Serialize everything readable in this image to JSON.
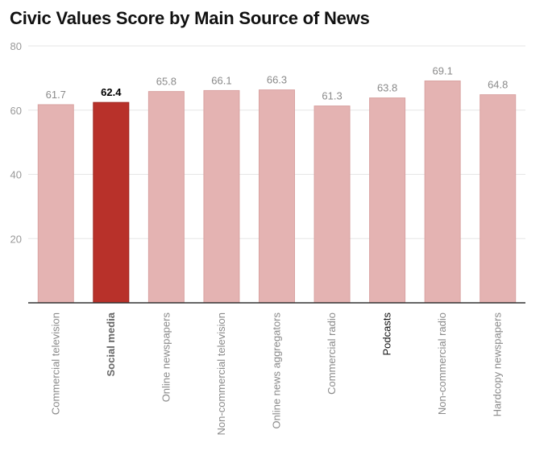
{
  "chart_data": {
    "type": "bar",
    "title": "Civic Values Score by Main Source of News",
    "xlabel": "",
    "ylabel": "",
    "ylim": [
      0,
      80
    ],
    "yticks": [
      20,
      40,
      60,
      80
    ],
    "grid": true,
    "categories": [
      "Commercial television",
      "Social media",
      "Online newspapers",
      "Non-commercial television",
      "Online news aggregators",
      "Commercial radio",
      "Podcasts",
      "Non-commercial radio",
      "Hardcopy newspapers"
    ],
    "values": [
      61.7,
      62.4,
      65.8,
      66.1,
      66.3,
      61.3,
      63.8,
      69.1,
      64.8
    ],
    "value_labels": [
      "61.7",
      "62.4",
      "65.8",
      "66.1",
      "66.3",
      "61.3",
      "63.8",
      "69.1",
      "64.8"
    ],
    "highlight_index": 1,
    "dark_label_index": 6,
    "colors": {
      "bar": "#e4b3b2",
      "bar_stroke": "#d9a3a2",
      "highlight": "#b8312a",
      "highlight_stroke": "#9e2620",
      "grid": "#e6e6e6",
      "axis": "#333333"
    }
  }
}
